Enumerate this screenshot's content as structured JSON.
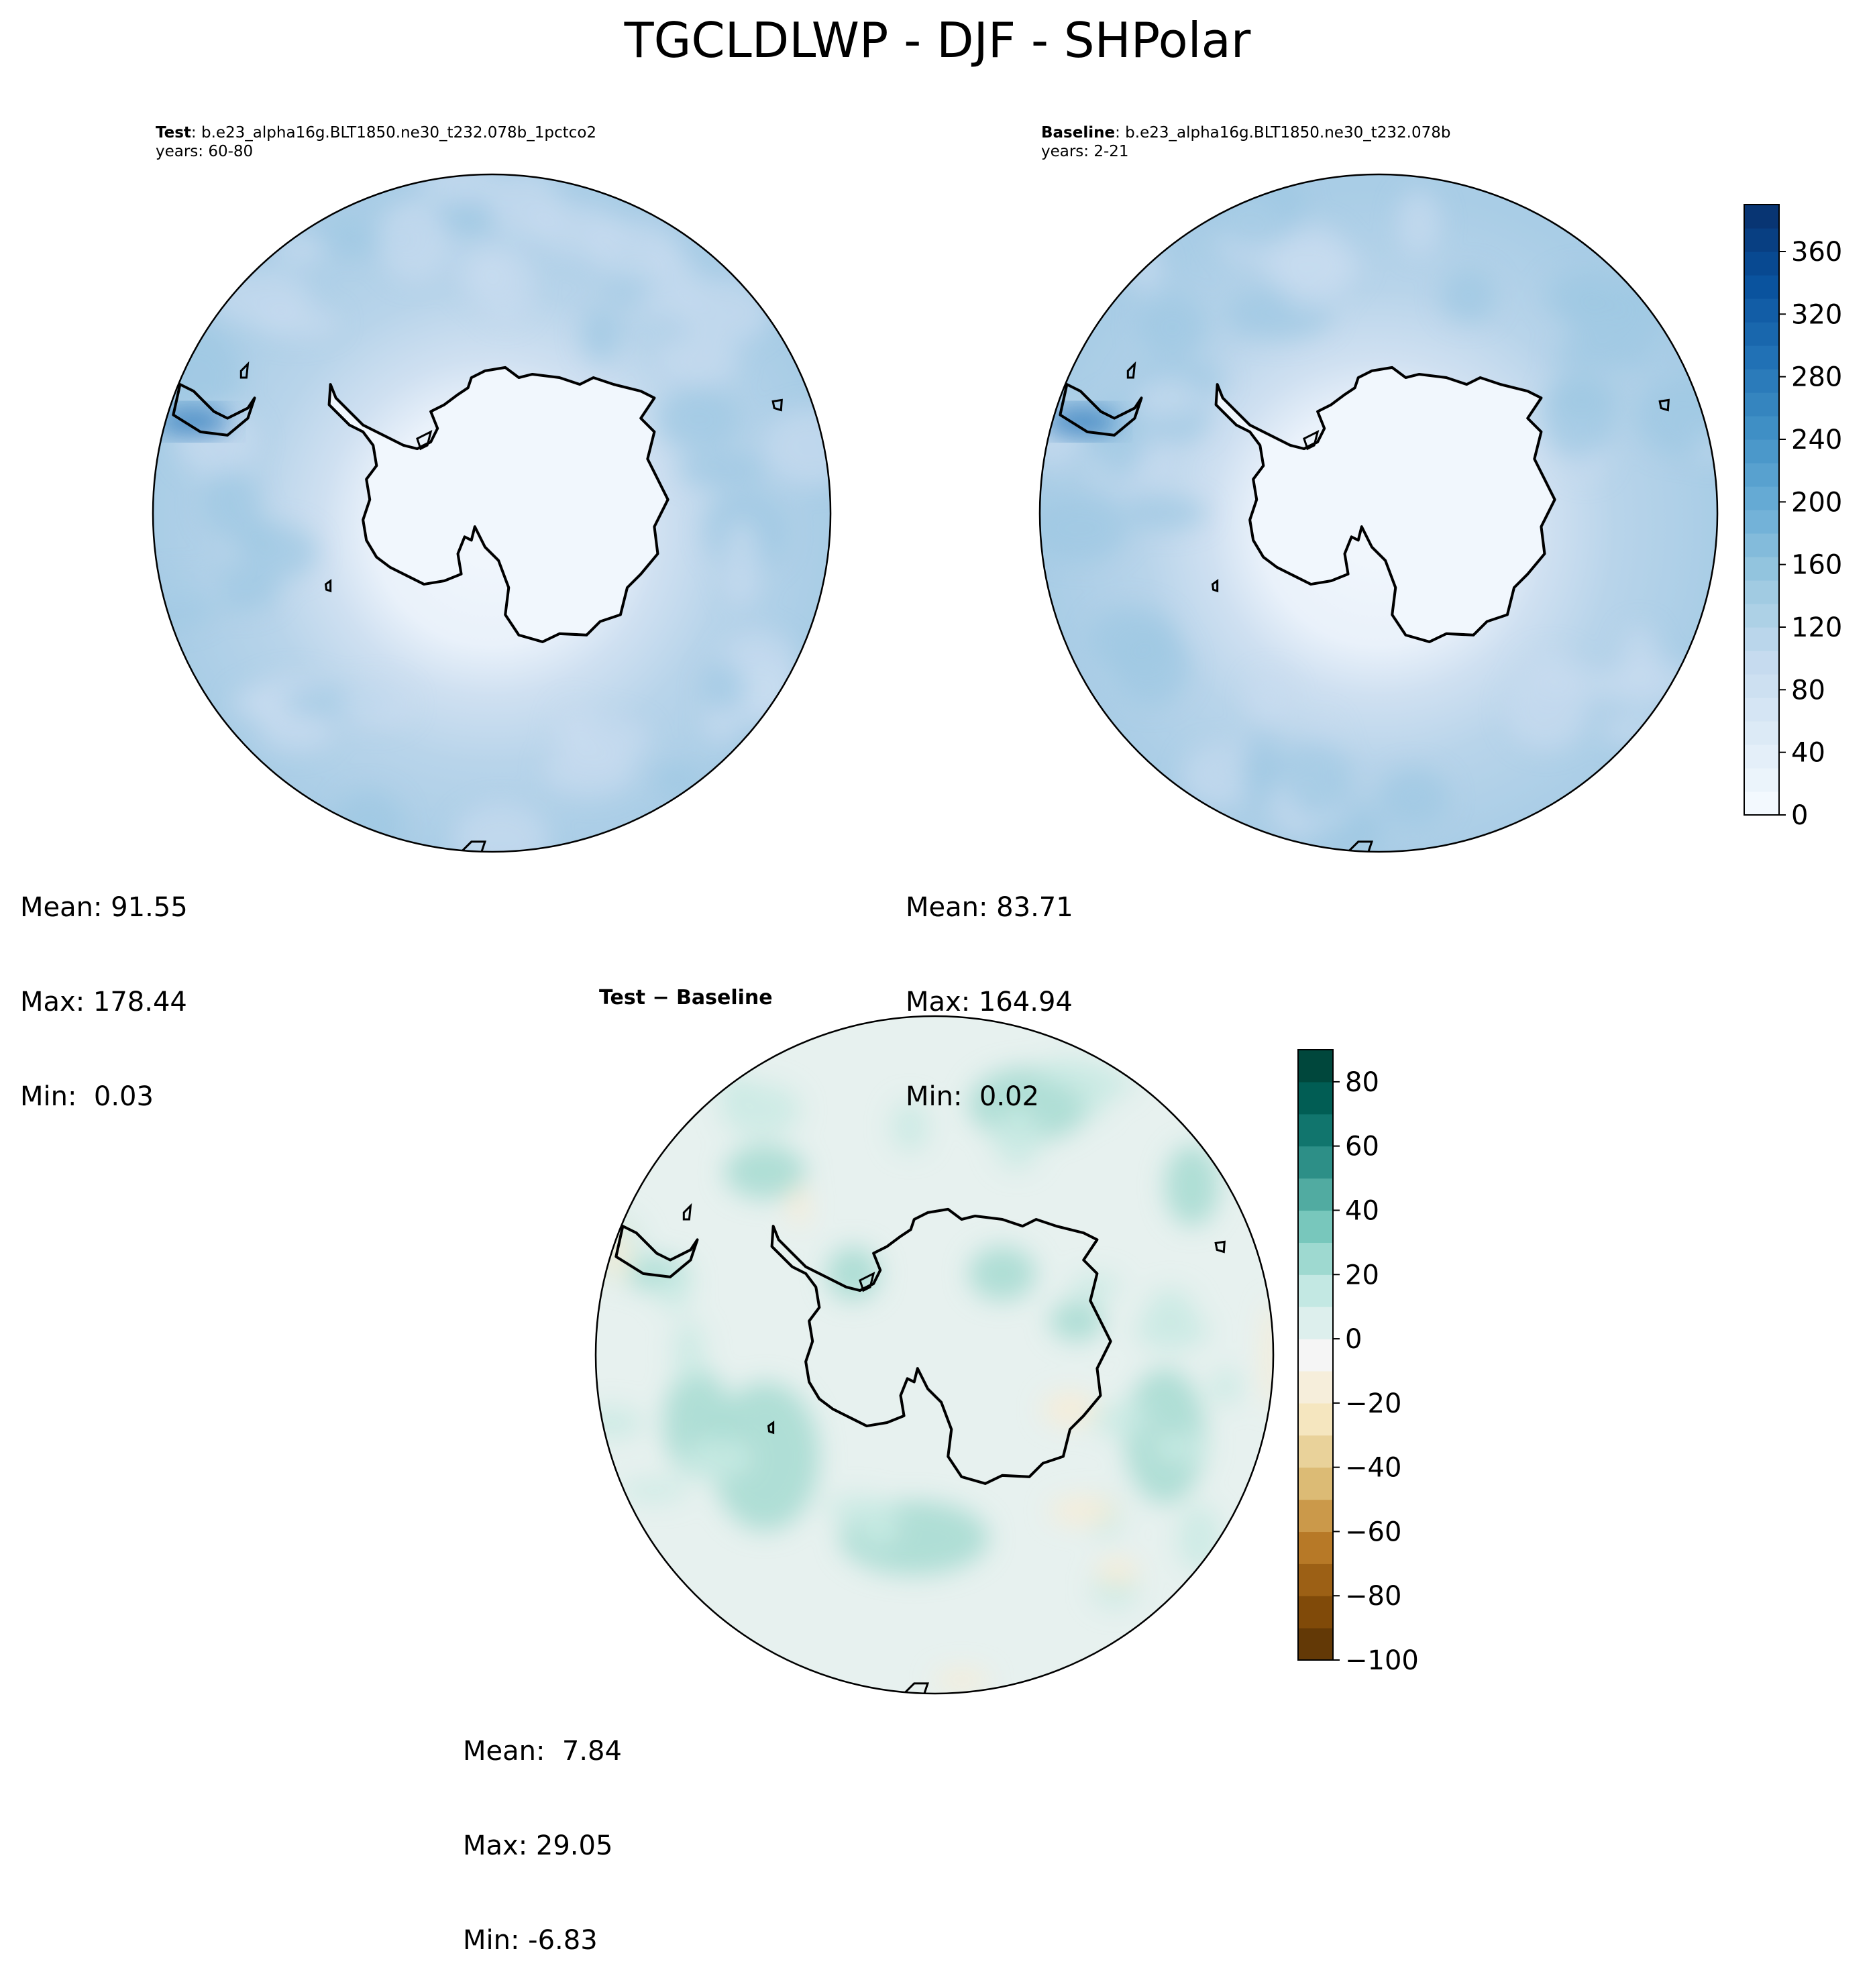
{
  "figure": {
    "title": "TGCLDLWP - DJF - SHPolar"
  },
  "panels": [
    {
      "id": "test",
      "label_bold": "Test",
      "label_rest": ": b.e23_alpha16g.BLT1850.ne30_t232.078b_1pctco2",
      "years": "years: 60-80",
      "stats": {
        "mean": "Mean: 91.55",
        "max": "Max: 178.44",
        "min": "Min:  0.03"
      }
    },
    {
      "id": "baseline",
      "label_bold": "Baseline",
      "label_rest": ": b.e23_alpha16g.BLT1850.ne30_t232.078b",
      "years": "years: 2-21",
      "stats": {
        "mean": "Mean: 83.71",
        "max": "Max: 164.94",
        "min": "Min:  0.02"
      }
    },
    {
      "id": "diff",
      "label_bold": "Test − Baseline",
      "stats": {
        "mean": "Mean:  7.84",
        "max": "Max: 29.05",
        "min": "Min: -6.83"
      }
    }
  ],
  "colorbars": {
    "field": {
      "colormap": "Blues",
      "range": [
        0,
        390
      ],
      "ticks": [
        "0",
        "40",
        "80",
        "120",
        "160",
        "200",
        "240",
        "280",
        "320",
        "360"
      ],
      "tick_values": [
        0,
        40,
        80,
        120,
        160,
        200,
        240,
        280,
        320,
        360
      ],
      "levels": 26,
      "colors": [
        "#f7fbff",
        "#deebf7",
        "#c6dbef",
        "#9ecae1",
        "#6baed6",
        "#4292c6",
        "#2171b5",
        "#08519c",
        "#08306b"
      ]
    },
    "difference": {
      "colormap": "BrBG",
      "range": [
        -100,
        90
      ],
      "ticks": [
        "−100",
        "−80",
        "−60",
        "−40",
        "−20",
        "0",
        "20",
        "40",
        "60",
        "80"
      ],
      "tick_values": [
        -100,
        -80,
        -60,
        -40,
        -20,
        0,
        20,
        40,
        60,
        80
      ],
      "levels": 19,
      "colors": [
        "#543005",
        "#8c510a",
        "#bf812d",
        "#dfc27d",
        "#f6e8c3",
        "#f5f5f5",
        "#c7eae5",
        "#80cdc1",
        "#35978f",
        "#01665e",
        "#003c30"
      ]
    }
  }
}
